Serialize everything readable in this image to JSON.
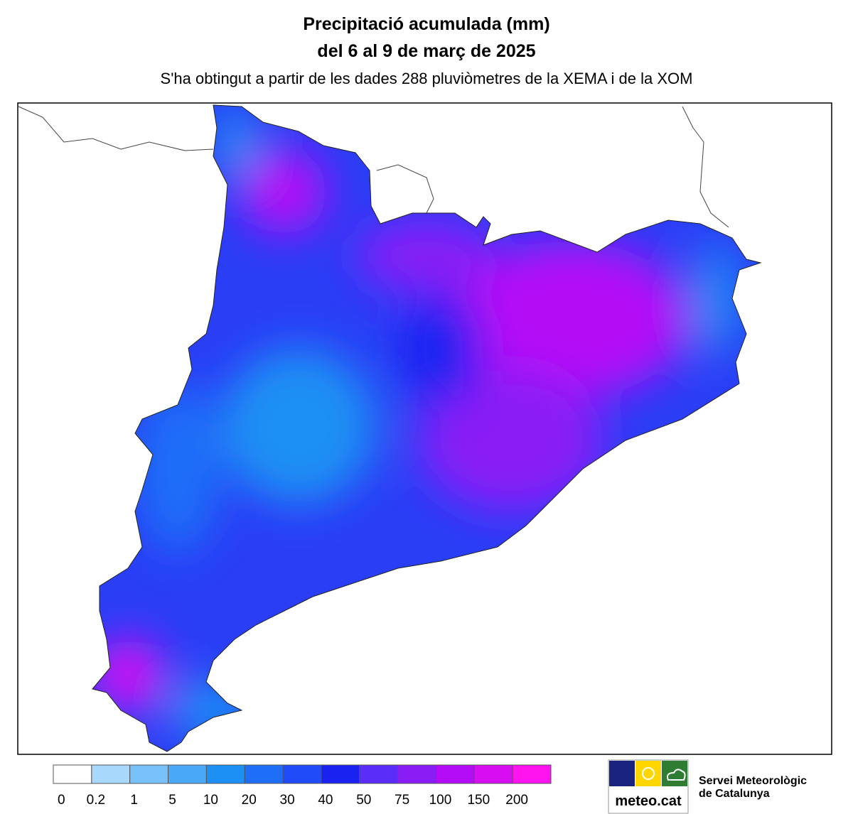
{
  "header": {
    "title": "Precipitació acumulada (mm)",
    "date": "del 6 al 9 de març de 2025",
    "subtitle": "S'ha obtingut a partir de les dades 288 pluviòmetres de la XEMA i de la XOM"
  },
  "legend": {
    "thresholds": [
      0,
      0.2,
      1,
      5,
      10,
      20,
      30,
      40,
      50,
      75,
      100,
      150,
      200
    ],
    "colors": [
      "#ffffff",
      "#a8d8fc",
      "#78c0fa",
      "#4aa8f8",
      "#1c90f4",
      "#1e6ef8",
      "#1f4cf8",
      "#1a22f2",
      "#5a2ef8",
      "#8a1cf6",
      "#b40cf6",
      "#d80ef2",
      "#ff14f0"
    ]
  },
  "logo": {
    "text": "meteo.cat",
    "org_line1": "Servei Meteorològic",
    "org_line2": "de Catalunya"
  }
}
